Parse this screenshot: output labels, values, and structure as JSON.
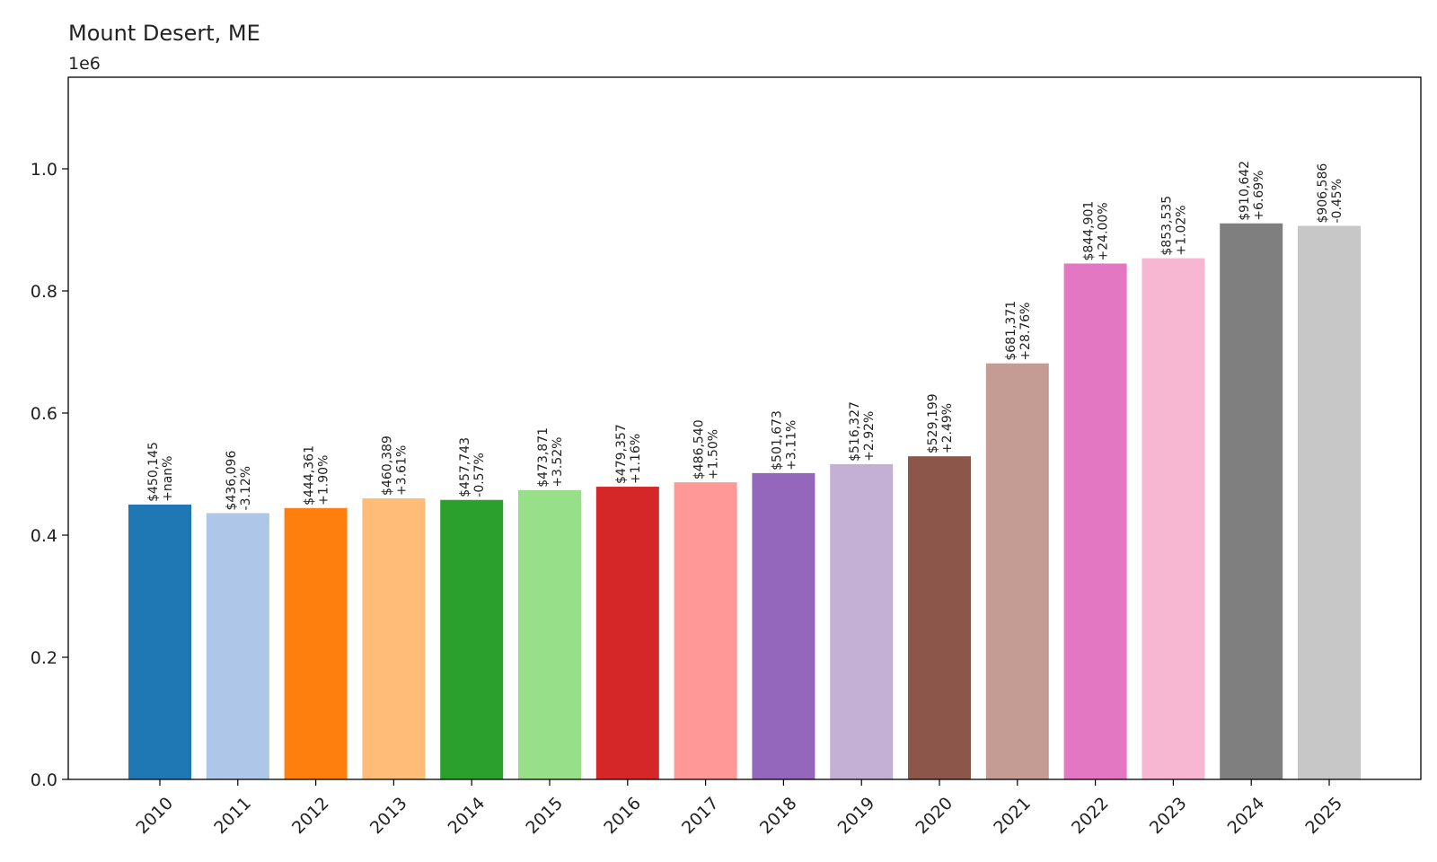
{
  "chart_data": {
    "type": "bar",
    "title": "Mount Desert, ME",
    "offset_label": "1e6",
    "xlabel": "",
    "ylabel": "",
    "ylim": [
      0,
      1.15
    ],
    "yticks": [
      0.0,
      0.2,
      0.4,
      0.6,
      0.8,
      1.0
    ],
    "ytick_labels": [
      "0.0",
      "0.2",
      "0.4",
      "0.6",
      "0.8",
      "1.0"
    ],
    "grid": false,
    "categories": [
      "2010",
      "2011",
      "2012",
      "2013",
      "2014",
      "2015",
      "2016",
      "2017",
      "2018",
      "2019",
      "2020",
      "2021",
      "2022",
      "2023",
      "2024",
      "2025"
    ],
    "values": [
      450145,
      436096,
      444361,
      460389,
      457743,
      473871,
      479357,
      486540,
      501673,
      516327,
      529199,
      681371,
      844901,
      853535,
      910642,
      906586
    ],
    "value_labels": [
      "$450,145",
      "$436,096",
      "$444,361",
      "$460,389",
      "$457,743",
      "$473,871",
      "$479,357",
      "$486,540",
      "$501,673",
      "$516,327",
      "$529,199",
      "$681,371",
      "$844,901",
      "$853,535",
      "$910,642",
      "$906,586"
    ],
    "change_labels": [
      "+nan%",
      "-3.12%",
      "+1.90%",
      "+3.61%",
      "-0.57%",
      "+3.52%",
      "+1.16%",
      "+1.50%",
      "+3.11%",
      "+2.92%",
      "+2.49%",
      "+28.76%",
      "+24.00%",
      "+1.02%",
      "+6.69%",
      "-0.45%"
    ],
    "colors": [
      "#1f77b4",
      "#aec7e8",
      "#ff7f0e",
      "#ffbb78",
      "#2ca02c",
      "#98df8a",
      "#d62728",
      "#ff9896",
      "#9467bd",
      "#c5b0d5",
      "#8c564b",
      "#c49c94",
      "#e377c2",
      "#f7b6d2",
      "#7f7f7f",
      "#c7c7c7"
    ]
  }
}
